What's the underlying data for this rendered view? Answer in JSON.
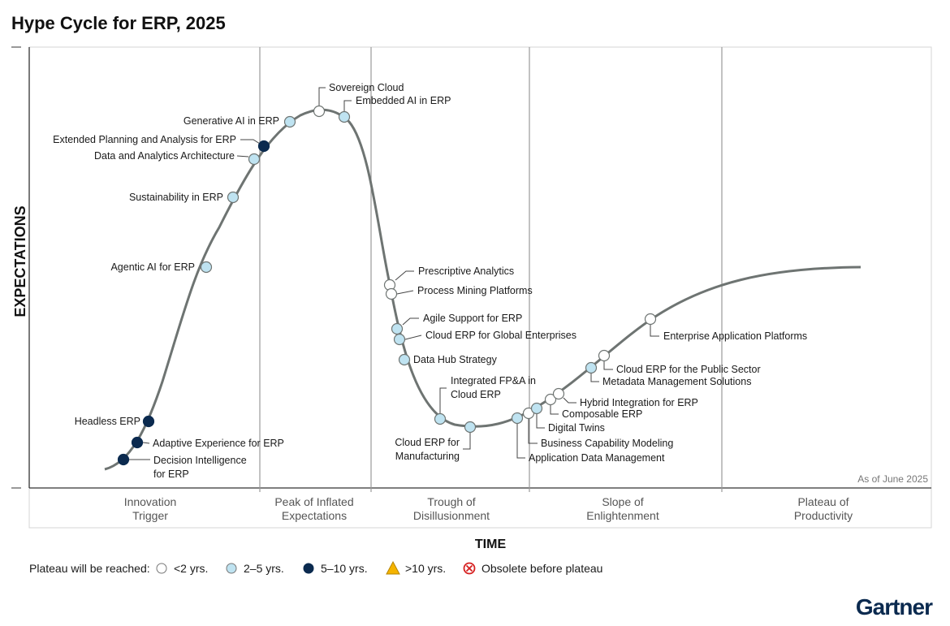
{
  "title": "Hype Cycle for ERP, 2025",
  "colors": {
    "lt2": "#ffffff",
    "y2to5": "#bfe3f1",
    "y5to10": "#0b2a4f",
    "gt10": "#f5b400",
    "obsolete": "#d62020",
    "curve": "#6e7472"
  },
  "chart_data": {
    "type": "hype-cycle",
    "title": "Hype Cycle for ERP, 2025",
    "ylabel": "EXPECTATIONS",
    "xlabel": "TIME",
    "as_of": "As of June 2025",
    "phases": [
      {
        "line1": "Innovation",
        "line2": "Trigger"
      },
      {
        "line1": "Peak of Inflated",
        "line2": "Expectations"
      },
      {
        "line1": "Trough of",
        "line2": "Disillusionment"
      },
      {
        "line1": "Slope of",
        "line2": "Enlightenment"
      },
      {
        "line1": "Plateau of",
        "line2": "Productivity"
      }
    ],
    "items": [
      {
        "name": "Decision Intelligence for ERP",
        "phase": "Innovation Trigger",
        "plateau": "5-10"
      },
      {
        "name": "Adaptive Experience for ERP",
        "phase": "Innovation Trigger",
        "plateau": "5-10"
      },
      {
        "name": "Headless ERP",
        "phase": "Innovation Trigger",
        "plateau": "5-10"
      },
      {
        "name": "Agentic AI for ERP",
        "phase": "Innovation Trigger",
        "plateau": "2-5"
      },
      {
        "name": "Sustainability in ERP",
        "phase": "Innovation Trigger",
        "plateau": "2-5"
      },
      {
        "name": "Data and Analytics Architecture",
        "phase": "Innovation Trigger",
        "plateau": "2-5"
      },
      {
        "name": "Extended Planning and Analysis for ERP",
        "phase": "Peak of Inflated Expectations",
        "plateau": "5-10"
      },
      {
        "name": "Generative AI in ERP",
        "phase": "Peak of Inflated Expectations",
        "plateau": "2-5"
      },
      {
        "name": "Sovereign Cloud",
        "phase": "Peak of Inflated Expectations",
        "plateau": "<2"
      },
      {
        "name": "Embedded AI in ERP",
        "phase": "Peak of Inflated Expectations",
        "plateau": "2-5"
      },
      {
        "name": "Prescriptive Analytics",
        "phase": "Trough of Disillusionment",
        "plateau": "<2"
      },
      {
        "name": "Process Mining Platforms",
        "phase": "Trough of Disillusionment",
        "plateau": "<2"
      },
      {
        "name": "Agile Support for ERP",
        "phase": "Trough of Disillusionment",
        "plateau": "2-5"
      },
      {
        "name": "Cloud ERP for Global Enterprises",
        "phase": "Trough of Disillusionment",
        "plateau": "2-5"
      },
      {
        "name": "Data Hub Strategy",
        "phase": "Trough of Disillusionment",
        "plateau": "2-5"
      },
      {
        "name": "Integrated FP&A in Cloud ERP",
        "phase": "Trough of Disillusionment",
        "plateau": "2-5"
      },
      {
        "name": "Cloud ERP for Manufacturing",
        "phase": "Trough of Disillusionment",
        "plateau": "2-5"
      },
      {
        "name": "Application Data Management",
        "phase": "Trough of Disillusionment",
        "plateau": "2-5"
      },
      {
        "name": "Business Capability Modeling",
        "phase": "Slope of Enlightenment",
        "plateau": "<2"
      },
      {
        "name": "Digital Twins",
        "phase": "Slope of Enlightenment",
        "plateau": "2-5"
      },
      {
        "name": "Composable ERP",
        "phase": "Slope of Enlightenment",
        "plateau": "<2"
      },
      {
        "name": "Hybrid Integration for ERP",
        "phase": "Slope of Enlightenment",
        "plateau": "<2"
      },
      {
        "name": "Metadata Management Solutions",
        "phase": "Slope of Enlightenment",
        "plateau": "2-5"
      },
      {
        "name": "Cloud ERP for the Public Sector",
        "phase": "Slope of Enlightenment",
        "plateau": "<2"
      },
      {
        "name": "Enterprise Application Platforms",
        "phase": "Slope of Enlightenment",
        "plateau": "<2"
      }
    ]
  },
  "legend": {
    "title": "Plateau will be reached:",
    "lt2": "<2 yrs.",
    "y2to5": "2–5 yrs.",
    "y5to10": "5–10 yrs.",
    "gt10": ">10 yrs.",
    "obsolete": "Obsolete before plateau"
  },
  "logo": "Gartner"
}
